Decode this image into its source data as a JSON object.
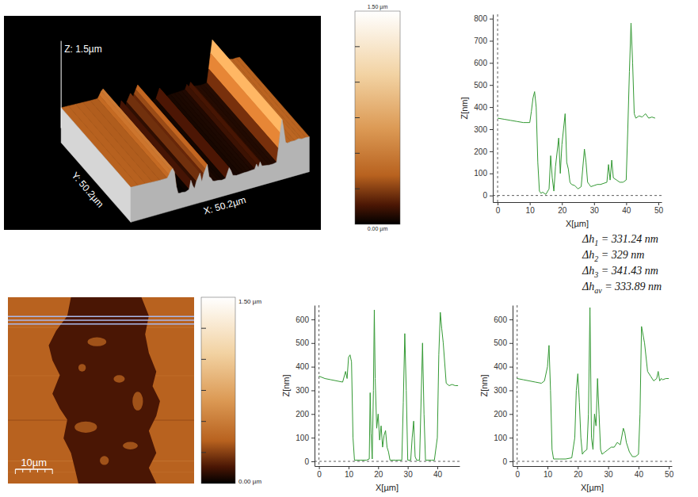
{
  "chart_data": [
    {
      "type": "line",
      "xlabel": "X[µm]",
      "ylabel": "Z[nm]",
      "x": [
        0,
        2,
        4,
        6,
        8,
        10,
        10.5,
        11,
        11.5,
        12,
        12.5,
        13,
        13.5,
        14,
        15,
        16,
        16.5,
        17,
        17.5,
        18,
        19,
        19.5,
        20,
        20.5,
        21,
        21.5,
        22,
        22.5,
        23,
        24,
        25,
        26,
        27,
        27.5,
        28,
        28.5,
        29,
        30,
        31,
        32,
        33,
        34,
        34.5,
        35,
        35.5,
        36,
        37,
        38,
        39,
        40,
        40.5,
        41,
        41.5,
        42,
        42.5,
        43,
        44,
        45,
        46,
        47,
        48,
        49
      ],
      "series": [
        {
          "color": "#339933",
          "values": [
            350,
            345,
            340,
            335,
            330,
            330,
            380,
            440,
            470,
            400,
            150,
            20,
            10,
            15,
            5,
            30,
            180,
            80,
            20,
            130,
            260,
            100,
            230,
            300,
            370,
            150,
            120,
            60,
            50,
            45,
            30,
            40,
            210,
            150,
            60,
            50,
            40,
            45,
            50,
            50,
            55,
            60,
            140,
            70,
            160,
            80,
            70,
            60,
            60,
            70,
            300,
            560,
            780,
            600,
            370,
            350,
            360,
            355,
            370,
            350,
            355,
            350
          ]
        }
      ],
      "xlim": [
        -1.5,
        51
      ],
      "ylim": [
        -30,
        820
      ],
      "xticks": [
        0,
        10,
        20,
        30,
        40,
        50
      ],
      "yticks": [
        0,
        100,
        200,
        300,
        400,
        500,
        600,
        700,
        800
      ]
    },
    {
      "type": "line",
      "xlabel": "X[µm]",
      "ylabel": "Z[nm]",
      "x": [
        0,
        2,
        4,
        6,
        8,
        9,
        9.5,
        10,
        10.5,
        11,
        11.5,
        12,
        14,
        16,
        17,
        17.3,
        17.6,
        18,
        18.4,
        18.7,
        19,
        19.5,
        20,
        20.5,
        21,
        21.5,
        22,
        22.5,
        23,
        23.5,
        24,
        26,
        28,
        28.5,
        29,
        29.5,
        30,
        31,
        31.5,
        32,
        32.5,
        33,
        34,
        35,
        35.5,
        36,
        38,
        39,
        40,
        40.5,
        41,
        41.5,
        42,
        43,
        44,
        45,
        46,
        47
      ],
      "series": [
        {
          "color": "#339933",
          "values": [
            360,
            350,
            345,
            340,
            335,
            380,
            350,
            440,
            450,
            420,
            100,
            5,
            5,
            5,
            10,
            290,
            120,
            10,
            300,
            640,
            350,
            140,
            200,
            90,
            150,
            60,
            110,
            130,
            60,
            40,
            5,
            5,
            5,
            250,
            540,
            300,
            5,
            5,
            100,
            170,
            20,
            5,
            5,
            500,
            200,
            5,
            5,
            5,
            100,
            450,
            630,
            560,
            500,
            330,
            320,
            325,
            320,
            320
          ]
        }
      ],
      "xlim": [
        -1.5,
        47.5
      ],
      "ylim": [
        -20,
        660
      ],
      "xticks": [
        0,
        10,
        20,
        30,
        40
      ],
      "yticks": [
        0,
        100,
        200,
        300,
        400,
        500,
        600
      ]
    },
    {
      "type": "line",
      "xlabel": "X[µm]",
      "ylabel": "Z[nm]",
      "x": [
        0,
        2,
        4,
        6,
        8,
        9,
        10,
        10.5,
        11,
        11.5,
        12,
        14,
        16,
        18,
        19,
        19.5,
        20,
        20.5,
        21,
        21.5,
        22,
        23,
        23.5,
        24,
        24.5,
        25,
        25.5,
        26,
        26.5,
        27,
        27.5,
        28,
        29,
        30,
        31,
        32,
        33,
        34,
        35,
        35.5,
        36,
        37,
        38,
        39,
        40,
        40.5,
        41,
        42,
        43,
        44,
        45,
        46,
        46.5,
        47,
        47.5,
        48,
        49,
        50
      ],
      "series": [
        {
          "color": "#339933",
          "values": [
            350,
            345,
            340,
            335,
            330,
            340,
            400,
            490,
            300,
            50,
            10,
            10,
            10,
            15,
            100,
            300,
            370,
            250,
            100,
            30,
            40,
            50,
            200,
            650,
            100,
            50,
            200,
            150,
            350,
            200,
            50,
            30,
            40,
            50,
            60,
            60,
            80,
            70,
            140,
            120,
            80,
            40,
            20,
            20,
            30,
            200,
            570,
            500,
            380,
            360,
            340,
            350,
            380,
            340,
            350,
            345,
            350,
            350
          ]
        }
      ],
      "xlim": [
        -1.5,
        51
      ],
      "ylim": [
        -20,
        660
      ],
      "xticks": [
        0,
        10,
        20,
        30,
        40,
        50
      ],
      "yticks": [
        0,
        100,
        200,
        300,
        400,
        500,
        600
      ]
    }
  ],
  "surface_3d": {
    "x_label": "X: 50.2µm",
    "y_label": "Y: 50.2µm",
    "z_label": "Z: 1.5µm",
    "size_um": 50.2,
    "colorbar": {
      "range": [
        0,
        1.5
      ],
      "tick_marks": [
        0.25,
        0.5,
        0.75,
        1,
        1.25
      ],
      "end_labels": [
        {
          "value": 1.5,
          "label": "1.50 µm"
        },
        {
          "value": 0,
          "label": "0.00 µm"
        }
      ]
    }
  },
  "height_map": {
    "size_um": 50.2,
    "scale_bar": {
      "length": 10,
      "label": "10µm"
    },
    "colorbar": {
      "range": [
        0,
        1.5
      ],
      "tick_marks": [
        0.25,
        0.5,
        0.75,
        1,
        1.25
      ],
      "end_labels": [
        {
          "value": 1.5,
          "label": "1.50 µm"
        },
        {
          "value": 0,
          "label": "0.00 µm"
        }
      ]
    }
  },
  "measurements": [
    {
      "symbol": "Δh",
      "subscript": "1",
      "text": " = 331.24 nm"
    },
    {
      "symbol": "Δh",
      "subscript": "2",
      "text": " = 329 nm"
    },
    {
      "symbol": "Δh",
      "subscript": "3",
      "text": " = 341.43 nm"
    },
    {
      "symbol": "Δh",
      "subscript": "av",
      "text": " = 333.89 nm"
    }
  ]
}
